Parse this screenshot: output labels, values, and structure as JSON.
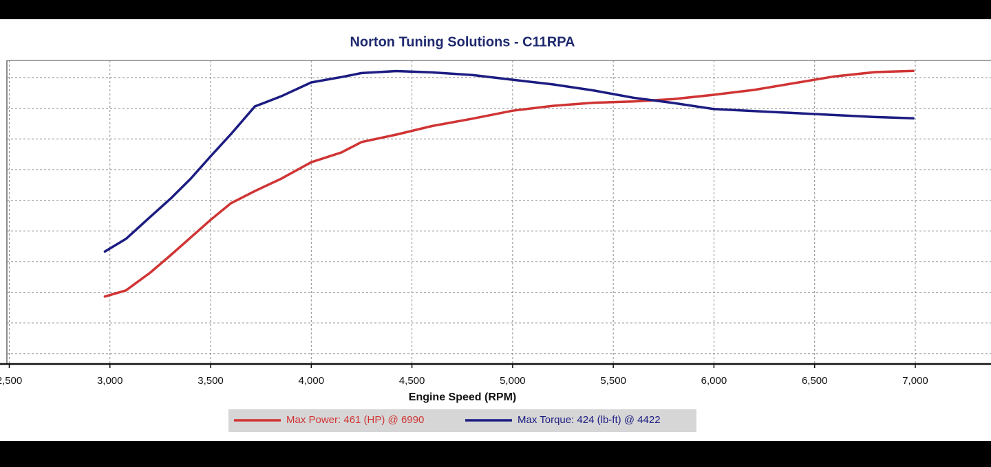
{
  "chart_data": {
    "type": "line",
    "title": "Norton Tuning Solutions - C11RPA",
    "x_label": "Engine Speed (RPM)",
    "x": [
      2975,
      3080,
      3200,
      3300,
      3400,
      3500,
      3600,
      3720,
      3850,
      4000,
      4150,
      4250,
      4422,
      4600,
      4800,
      5000,
      5200,
      5400,
      5600,
      5800,
      6000,
      6200,
      6400,
      6600,
      6800,
      6990
    ],
    "series": [
      {
        "name": "Max Power: 461 (HP) @ 6990",
        "color": "#d03434",
        "values": [
          93,
          103,
          132,
          160,
          189,
          218,
          245,
          265,
          285,
          312,
          328,
          345,
          357,
          371,
          383,
          396,
          404,
          409,
          411,
          415,
          422,
          430,
          441,
          452,
          459,
          461
        ]
      },
      {
        "name": "Max Torque: 424 (lb-ft) @ 4422",
        "color": "#1c1c82",
        "axis": "y2",
        "values": [
          153,
          172,
          205,
          232,
          262,
          296,
          329,
          371,
          386,
          407,
          415,
          421,
          424,
          422,
          418,
          411,
          404,
          395,
          384,
          376,
          367,
          364,
          361,
          358,
          355,
          353
        ]
      }
    ],
    "xlim": [
      2454,
      7376
    ],
    "xticks": [
      {
        "value": 2500,
        "label": "2,500"
      },
      {
        "value": 3000,
        "label": "3,000"
      },
      {
        "value": 3500,
        "label": "3,500"
      },
      {
        "value": 4000,
        "label": "4,000"
      },
      {
        "value": 4500,
        "label": "4,500"
      },
      {
        "value": 5000,
        "label": "5,000"
      },
      {
        "value": 5500,
        "label": "5,500"
      },
      {
        "value": 6000,
        "label": "6,000"
      },
      {
        "value": 6500,
        "label": "6,500"
      },
      {
        "value": 7000,
        "label": "7,000"
      }
    ],
    "ylim": [
      -17,
      478
    ],
    "yticks": [
      0,
      50,
      100,
      150,
      200,
      250,
      300,
      350,
      400,
      450
    ],
    "y2lim": [
      -16,
      440
    ],
    "grid": true
  }
}
